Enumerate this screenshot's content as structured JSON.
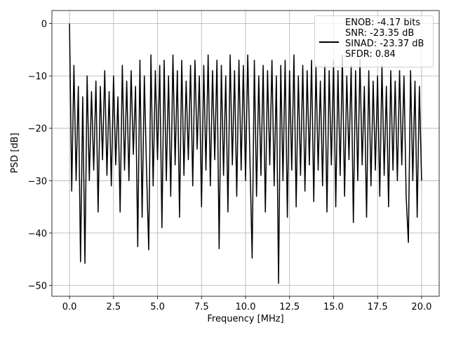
{
  "chart_data": {
    "type": "line",
    "xlabel": "Frequency [MHz]",
    "ylabel": "PSD [dB]",
    "xlim": [
      -1.0,
      21.0
    ],
    "ylim": [
      -52.08,
      2.48
    ],
    "xticks": [
      {
        "value": 0,
        "label": "0.0"
      },
      2.5,
      {
        "value": 5,
        "label": "5.0"
      },
      7.5,
      {
        "value": 10,
        "label": "10.0"
      },
      12.5,
      {
        "value": 15,
        "label": "15.0"
      },
      17.5,
      {
        "value": 20,
        "label": "20.0"
      }
    ],
    "yticks": [
      0,
      {
        "value": -10,
        "label": "−10"
      },
      {
        "value": -20,
        "label": "−20"
      },
      {
        "value": -30,
        "label": "−30"
      },
      {
        "value": -40,
        "label": "−40"
      },
      {
        "value": -50,
        "label": "−50"
      }
    ],
    "grid": true,
    "legend": "upper right",
    "x": [
      0,
      0.125,
      0.25,
      0.375,
      0.5,
      0.625,
      0.75,
      0.875,
      1,
      1.125,
      1.25,
      1.375,
      1.5,
      1.625,
      1.75,
      1.875,
      2,
      2.125,
      2.25,
      2.375,
      2.5,
      2.625,
      2.75,
      2.875,
      3,
      3.125,
      3.25,
      3.375,
      3.5,
      3.625,
      3.75,
      3.875,
      4,
      4.125,
      4.25,
      4.375,
      4.5,
      4.625,
      4.75,
      4.875,
      5,
      5.125,
      5.25,
      5.375,
      5.5,
      5.625,
      5.75,
      5.875,
      6,
      6.125,
      6.25,
      6.375,
      6.5,
      6.625,
      6.75,
      6.875,
      7,
      7.125,
      7.25,
      7.375,
      7.5,
      7.625,
      7.75,
      7.875,
      8,
      8.125,
      8.25,
      8.375,
      8.5,
      8.625,
      8.75,
      8.875,
      9,
      9.125,
      9.25,
      9.375,
      9.5,
      9.625,
      9.75,
      9.875,
      10,
      10.125,
      10.25,
      10.375,
      10.5,
      10.625,
      10.75,
      10.875,
      11,
      11.125,
      11.25,
      11.375,
      11.5,
      11.625,
      11.75,
      11.875,
      12,
      12.125,
      12.25,
      12.375,
      12.5,
      12.625,
      12.75,
      12.875,
      13,
      13.125,
      13.25,
      13.375,
      13.5,
      13.625,
      13.75,
      13.875,
      14,
      14.125,
      14.25,
      14.375,
      14.5,
      14.625,
      14.75,
      14.875,
      15,
      15.125,
      15.25,
      15.375,
      15.5,
      15.625,
      15.75,
      15.875,
      16,
      16.125,
      16.25,
      16.375,
      16.5,
      16.625,
      16.75,
      16.875,
      17,
      17.125,
      17.25,
      17.375,
      17.5,
      17.625,
      17.75,
      17.875,
      18,
      18.125,
      18.25,
      18.375,
      18.5,
      18.625,
      18.75,
      18.875,
      19,
      19.125,
      19.25,
      19.375,
      19.5,
      19.625,
      19.75,
      19.875,
      20
    ],
    "series": [
      {
        "name": "ENOB: -4.17 bits\nSNR: -23.35 dB\nSINAD: -23.37 dB\nSFDR: 0.84",
        "color": "#000000",
        "values": [
          0,
          -32,
          -8,
          -30,
          -12,
          -45.5,
          -14,
          -45.8,
          -10,
          -30,
          -13,
          -28,
          -11,
          -36,
          -12,
          -26,
          -9,
          -29,
          -13,
          -31,
          -10,
          -27,
          -14,
          -36,
          -8,
          -28,
          -11,
          -30,
          -9,
          -25,
          -12,
          -42.6,
          -7,
          -37,
          -10,
          -28,
          -43.2,
          -6,
          -31,
          -9,
          -26,
          -8,
          -39,
          -7,
          -30,
          -10,
          -33,
          -6,
          -27,
          -9,
          -37,
          -7,
          -29,
          -11,
          -26,
          -8,
          -31,
          -7,
          -24,
          -10,
          -35,
          -8,
          -28,
          -6,
          -31,
          -9,
          -26,
          -7,
          -43,
          -8,
          -29,
          -10,
          -36,
          -6,
          -27,
          -9,
          -33,
          -7,
          -28,
          -8,
          -30,
          -6,
          -26,
          -44.8,
          -7,
          -33,
          -10,
          -29,
          -8,
          -36,
          -9,
          -27,
          -7,
          -31,
          -10,
          -49.6,
          -8,
          -30,
          -7,
          -37,
          -9,
          -28,
          -6,
          -35,
          -10,
          -29,
          -8,
          -32,
          -9,
          -27,
          -7,
          -34,
          -8,
          -28,
          -11,
          -31,
          -8,
          -36,
          -9,
          -27,
          -7,
          -35,
          -9,
          -29,
          -6,
          -33,
          -10,
          -26,
          -8,
          -38,
          -9,
          -30,
          -7,
          -27,
          -12,
          -37,
          -9,
          -31,
          -11,
          -28,
          -10,
          -33,
          -8,
          -29,
          -12,
          -35,
          -9,
          -28,
          -11,
          -30,
          -9,
          -27,
          -10,
          -33,
          -41.8,
          -9,
          -30,
          -11,
          -37,
          -12,
          -30
        ]
      }
    ]
  }
}
